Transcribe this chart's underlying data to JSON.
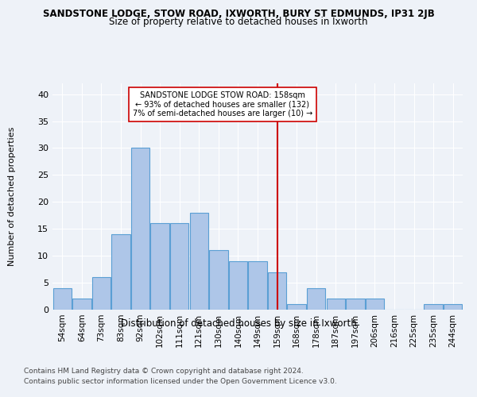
{
  "title": "SANDSTONE LODGE, STOW ROAD, IXWORTH, BURY ST EDMUNDS, IP31 2JB",
  "subtitle": "Size of property relative to detached houses in Ixworth",
  "xlabel": "Distribution of detached houses by size in Ixworth",
  "ylabel": "Number of detached properties",
  "categories": [
    "54sqm",
    "64sqm",
    "73sqm",
    "83sqm",
    "92sqm",
    "102sqm",
    "111sqm",
    "121sqm",
    "130sqm",
    "140sqm",
    "149sqm",
    "159sqm",
    "168sqm",
    "178sqm",
    "187sqm",
    "197sqm",
    "206sqm",
    "216sqm",
    "225sqm",
    "235sqm",
    "244sqm"
  ],
  "values": [
    4,
    2,
    6,
    14,
    30,
    16,
    16,
    18,
    11,
    9,
    9,
    7,
    1,
    4,
    2,
    2,
    2,
    0,
    0,
    1,
    1
  ],
  "bar_color": "#aec6e8",
  "bar_edge_color": "#5a9fd4",
  "vline_x": 11,
  "vline_color": "#cc0000",
  "annotation_title": "SANDSTONE LODGE STOW ROAD: 158sqm",
  "annotation_line1": "← 93% of detached houses are smaller (132)",
  "annotation_line2": "7% of semi-detached houses are larger (10) →",
  "ylim": [
    0,
    42
  ],
  "yticks": [
    0,
    5,
    10,
    15,
    20,
    25,
    30,
    35,
    40
  ],
  "footer1": "Contains HM Land Registry data © Crown copyright and database right 2024.",
  "footer2": "Contains public sector information licensed under the Open Government Licence v3.0.",
  "bg_color": "#eef2f8",
  "plot_bg_color": "#eef2f8"
}
